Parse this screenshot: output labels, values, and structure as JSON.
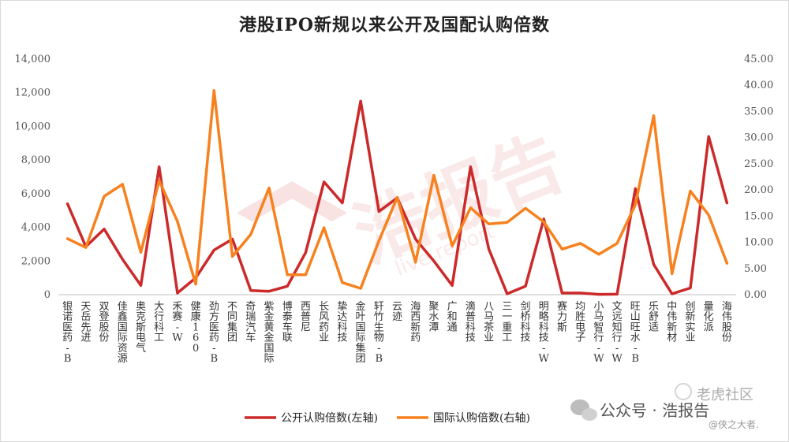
{
  "chart_data": {
    "type": "line",
    "title": "港股IPO新规以来公开及国配认购倍数",
    "categories": [
      "银诺医药-B",
      "天岳先进",
      "双登股份",
      "佳鑫国际资源",
      "奥克斯电气",
      "大行科工",
      "禾赛-W",
      "健康160",
      "劲方医药-B",
      "不同集团",
      "奇瑞汽车",
      "紫金黄金国际",
      "博泰车联",
      "西普尼",
      "长风药业",
      "挚达科技",
      "金叶国际集团",
      "轩竹生物-B",
      "云迹",
      "海西新药",
      "聚水潭",
      "广和通",
      "滴普科技",
      "八马茶业",
      "三一重工",
      "剑桥科技",
      "明略科技-W",
      "赛力斯",
      "均胜电子",
      "小马智行-W",
      "文远知行-W",
      "旺山旺水-B",
      "乐舒适",
      "中伟新材",
      "创新实业",
      "量化派",
      "海伟股份"
    ],
    "series": [
      {
        "name": "公开认购倍数(左轴)",
        "axis": "left",
        "color": "#cc2a2a",
        "values": [
          5400,
          2850,
          3900,
          2100,
          550,
          7600,
          100,
          1000,
          2650,
          3300,
          250,
          200,
          500,
          2500,
          6700,
          5450,
          11500,
          4950,
          5750,
          3300,
          2000,
          550,
          7600,
          2700,
          50,
          500,
          4500,
          100,
          100,
          20,
          30,
          6300,
          1800,
          50,
          400,
          9400,
          5450
        ]
      },
      {
        "name": "国际认购倍数(右轴)",
        "axis": "right",
        "color": "#f7811e",
        "values": [
          10.7,
          9.0,
          18.8,
          21.1,
          8.1,
          21.8,
          14.0,
          2.0,
          39.0,
          7.3,
          11.5,
          20.4,
          3.8,
          3.8,
          12.8,
          2.3,
          1.2,
          10.3,
          18.6,
          6.2,
          22.8,
          9.3,
          16.6,
          13.5,
          13.8,
          16.5,
          13.9,
          8.7,
          9.8,
          7.7,
          9.8,
          17.2,
          34.2,
          4.0,
          19.8,
          15.2,
          6.0
        ]
      }
    ],
    "ylim_left": [
      0,
      14000
    ],
    "ylim_right": [
      0,
      45
    ],
    "yticks_left": [
      "0",
      "2,000",
      "4,000",
      "6,000",
      "8,000",
      "10,000",
      "12,000",
      "14,000"
    ],
    "yticks_right": [
      "0.00",
      "5.00",
      "10.00",
      "15.00",
      "20.00",
      "25.00",
      "30.00",
      "35.00",
      "40.00",
      "45.00"
    ],
    "grid": false,
    "legend_position": "bottom-center"
  },
  "watermark": {
    "brand": "浩报告",
    "sub": "live report",
    "wechat": "公众号 · 浩报告",
    "community": "老虎社区",
    "author": "@侠之大者."
  }
}
